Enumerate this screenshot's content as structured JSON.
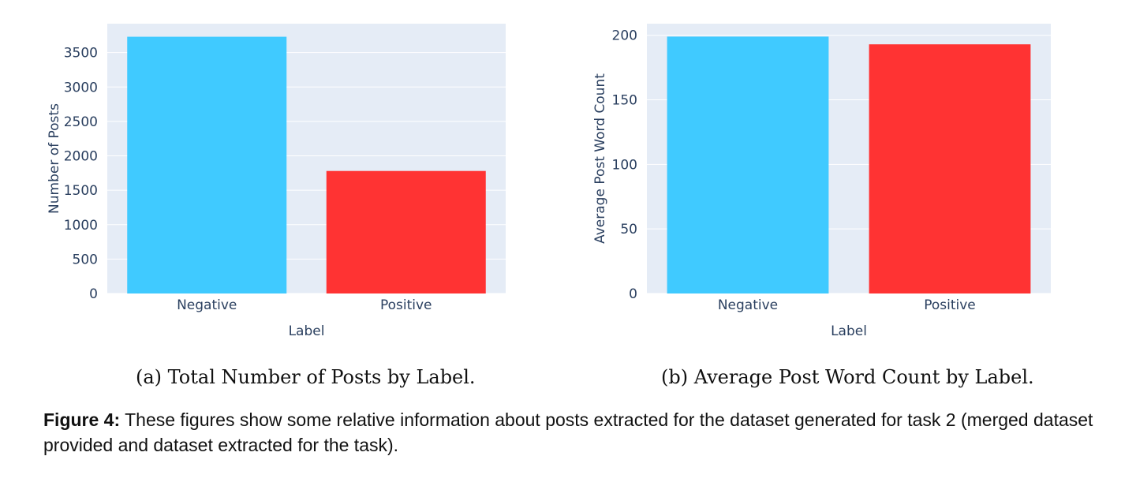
{
  "chart_data": [
    {
      "type": "bar",
      "categories": [
        "Negative",
        "Positive"
      ],
      "values": [
        3730,
        1780
      ],
      "colors": [
        "#40caff",
        "#ff3333"
      ],
      "xlabel": "Label",
      "ylabel": "Number of Posts",
      "ylim": [
        0,
        3920
      ],
      "yticks": [
        0,
        500,
        1000,
        1500,
        2000,
        2500,
        3000,
        3500
      ],
      "grid": true,
      "plot_bg": "#e5ecf6"
    },
    {
      "type": "bar",
      "categories": [
        "Negative",
        "Positive"
      ],
      "values": [
        199,
        193
      ],
      "colors": [
        "#40caff",
        "#ff3333"
      ],
      "xlabel": "Label",
      "ylabel": "Average Post Word Count",
      "ylim": [
        0,
        209
      ],
      "yticks": [
        0,
        50,
        100,
        150,
        200
      ],
      "grid": true,
      "plot_bg": "#e5ecf6"
    }
  ],
  "subcaptions": [
    "(a) Total Number of Posts by Label.",
    "(b) Average Post Word Count by Label."
  ],
  "caption": {
    "label": "Figure 4:",
    "text": " These figures show some relative information about posts extracted for the dataset generated for task 2 (merged dataset provided and dataset extracted for the task)."
  }
}
